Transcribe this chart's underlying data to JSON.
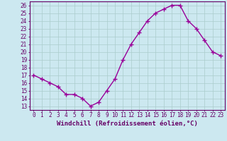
{
  "x": [
    0,
    1,
    2,
    3,
    4,
    5,
    6,
    7,
    8,
    9,
    10,
    11,
    12,
    13,
    14,
    15,
    16,
    17,
    18,
    19,
    20,
    21,
    22,
    23
  ],
  "y": [
    17,
    16.5,
    16,
    15.5,
    14.5,
    14.5,
    14,
    13,
    13.5,
    15,
    16.5,
    19,
    21,
    22.5,
    24,
    25,
    25.5,
    26,
    26,
    24,
    23,
    21.5,
    20,
    19.5
  ],
  "line_color": "#990099",
  "marker": "+",
  "marker_size": 4,
  "marker_linewidth": 1.0,
  "line_width": 1.0,
  "xlabel": "Windchill (Refroidissement éolien,°C)",
  "xlim": [
    -0.5,
    23.5
  ],
  "ylim": [
    12.5,
    26.5
  ],
  "yticks": [
    13,
    14,
    15,
    16,
    17,
    18,
    19,
    20,
    21,
    22,
    23,
    24,
    25,
    26
  ],
  "xtick_labels": [
    "0",
    "1",
    "2",
    "3",
    "4",
    "5",
    "6",
    "7",
    "8",
    "9",
    "10",
    "11",
    "12",
    "13",
    "14",
    "15",
    "16",
    "17",
    "18",
    "19",
    "20",
    "21",
    "22",
    "23"
  ],
  "bg_color": "#cce8f0",
  "grid_color": "#aacccc",
  "tick_label_fontsize": 5.5,
  "xlabel_fontsize": 6.5,
  "tick_color": "#660066",
  "axis_color": "#660066"
}
